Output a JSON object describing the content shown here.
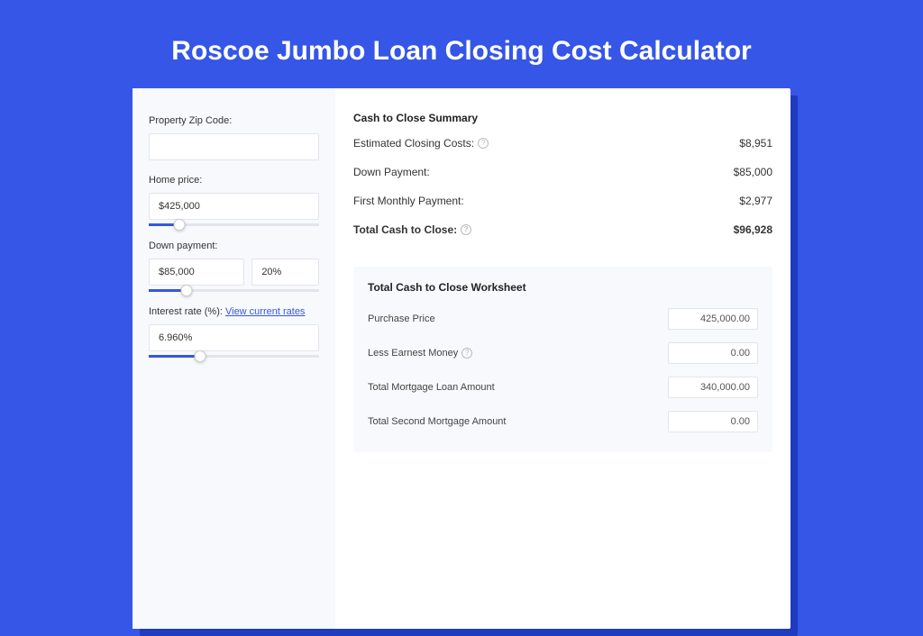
{
  "colors": {
    "page_bg": "#3556e6",
    "shadow_bg": "#1f3bc0",
    "card_bg": "#ffffff",
    "panel_bg": "#f7f9fc",
    "border": "#e2e5ec",
    "text": "#333333",
    "link": "#3556e6",
    "slider_fill": "#3556e6"
  },
  "title": "Roscoe Jumbo Loan Closing Cost Calculator",
  "inputs": {
    "zip": {
      "label": "Property Zip Code:",
      "value": ""
    },
    "home_price": {
      "label": "Home price:",
      "value": "$425,000",
      "slider_pct": 18
    },
    "down_payment": {
      "label": "Down payment:",
      "value": "$85,000",
      "pct_value": "20%",
      "slider_pct": 22
    },
    "interest_rate": {
      "label": "Interest rate (%): ",
      "link_text": "View current rates",
      "value": "6.960%",
      "slider_pct": 30
    }
  },
  "summary": {
    "title": "Cash to Close Summary",
    "rows": [
      {
        "label": "Estimated Closing Costs:",
        "has_help": true,
        "value": "$8,951",
        "bold": false
      },
      {
        "label": "Down Payment:",
        "has_help": false,
        "value": "$85,000",
        "bold": false
      },
      {
        "label": "First Monthly Payment:",
        "has_help": false,
        "value": "$2,977",
        "bold": false
      },
      {
        "label": "Total Cash to Close:",
        "has_help": true,
        "value": "$96,928",
        "bold": true
      }
    ]
  },
  "worksheet": {
    "title": "Total Cash to Close Worksheet",
    "rows": [
      {
        "label": "Purchase Price",
        "has_help": false,
        "value": "425,000.00"
      },
      {
        "label": "Less Earnest Money",
        "has_help": true,
        "value": "0.00"
      },
      {
        "label": "Total Mortgage Loan Amount",
        "has_help": false,
        "value": "340,000.00"
      },
      {
        "label": "Total Second Mortgage Amount",
        "has_help": false,
        "value": "0.00"
      }
    ]
  }
}
